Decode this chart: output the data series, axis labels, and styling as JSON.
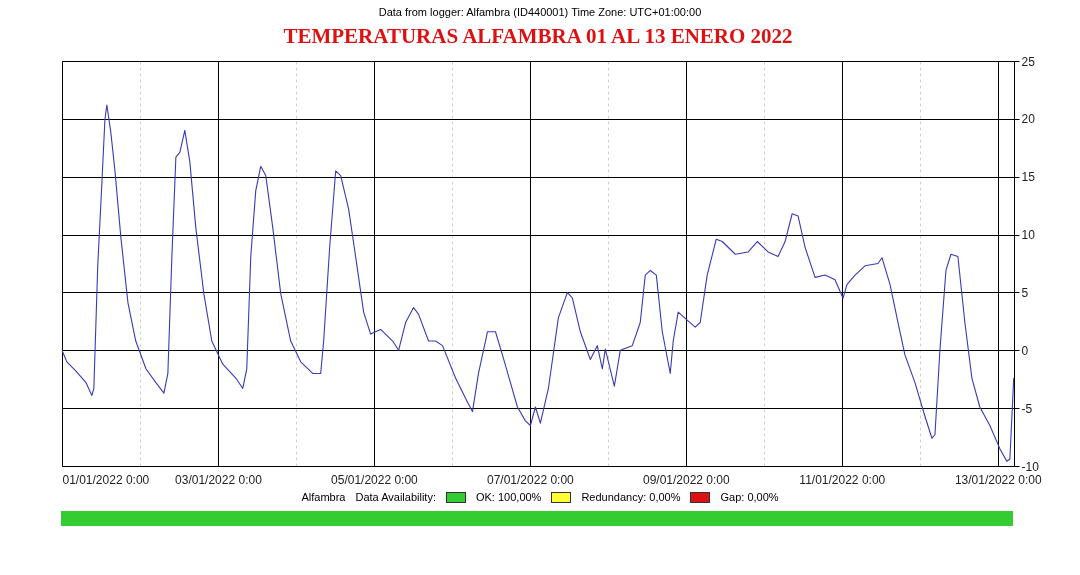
{
  "chart_data": {
    "type": "line",
    "title": "TEMPERATURAS ALFAMBRA 01 AL 13 ENERO 2022",
    "annotations": [
      "Data from logger: Alfambra (ID440001) Time Zone: UTC+01:00:00",
      "Alfambra",
      "Data Availability:",
      "OK: 100,00%",
      "Redundancy: 0,00%",
      "Gap: 0,00%"
    ],
    "xlim": [
      "2022-01-01T00:00",
      "2022-01-13T05:00"
    ],
    "xticks": [
      {
        "value": "2022-01-01T00:00",
        "label": "01/01/2022 0:00"
      },
      {
        "value": "2022-01-02T00:00",
        "label": null
      },
      {
        "value": "2022-01-03T00:00",
        "label": "03/01/2022 0:00"
      },
      {
        "value": "2022-01-04T00:00",
        "label": null
      },
      {
        "value": "2022-01-05T00:00",
        "label": "05/01/2022 0:00"
      },
      {
        "value": "2022-01-06T00:00",
        "label": null
      },
      {
        "value": "2022-01-07T00:00",
        "label": "07/01/2022 0:00"
      },
      {
        "value": "2022-01-08T00:00",
        "label": null
      },
      {
        "value": "2022-01-09T00:00",
        "label": "09/01/2022 0:00"
      },
      {
        "value": "2022-01-10T00:00",
        "label": null
      },
      {
        "value": "2022-01-11T00:00",
        "label": "11/01/2022 0:00"
      },
      {
        "value": "2022-01-12T00:00",
        "label": null
      },
      {
        "value": "2022-01-13T00:00",
        "label": "13/01/2022 0:00"
      }
    ],
    "ylim": [
      -10,
      25
    ],
    "yticks": [
      -10,
      -5,
      0,
      5,
      10,
      15,
      20,
      25
    ],
    "grid": true,
    "marker": "none",
    "line_style": "solid",
    "x": [
      "2022-01-01T00:00",
      "2022-01-01T01:30",
      "2022-01-01T04:18",
      "2022-01-01T07:24",
      "2022-01-01T09:12",
      "2022-01-01T09:48",
      "2022-01-01T11:00",
      "2022-01-01T12:18",
      "2022-01-01T13:12",
      "2022-01-01T13:48",
      "2022-01-01T15:00",
      "2022-01-01T16:18",
      "2022-01-01T18:06",
      "2022-01-01T20:18",
      "2022-01-01T22:42",
      "2022-01-02T01:50",
      "2022-01-02T04:54",
      "2022-01-02T07:22",
      "2022-01-02T08:35",
      "2022-01-02T09:49",
      "2022-01-02T11:03",
      "2022-01-02T12:16",
      "2022-01-02T13:48",
      "2022-01-02T15:20",
      "2022-01-02T17:11",
      "2022-01-02T19:39",
      "2022-01-02T22:06",
      "2022-01-03T01:29",
      "2022-01-03T05:29",
      "2022-01-03T07:38",
      "2022-01-03T08:52",
      "2022-01-03T10:06",
      "2022-01-03T11:38",
      "2022-01-03T13:10",
      "2022-01-03T14:43",
      "2022-01-03T16:52",
      "2022-01-03T19:19",
      "2022-01-03T22:23",
      "2022-01-04T01:28",
      "2022-01-04T05:09",
      "2022-01-04T07:37",
      "2022-01-04T08:32",
      "2022-01-04T10:23",
      "2022-01-04T12:14",
      "2022-01-04T13:46",
      "2022-01-04T16:13",
      "2022-01-04T18:22",
      "2022-01-04T20:50",
      "2022-01-04T22:59",
      "2022-01-05T02:04",
      "2022-01-05T05:46",
      "2022-01-05T07:36",
      "2022-01-05T09:45",
      "2022-01-05T12:12",
      "2022-01-05T13:45",
      "2022-01-05T16:49",
      "2022-01-05T18:58",
      "2022-01-05T21:07",
      "2022-01-06T01:07",
      "2022-01-06T04:48",
      "2022-01-06T06:20",
      "2022-01-06T08:11",
      "2022-01-06T10:57",
      "2022-01-06T13:25",
      "2022-01-06T15:33",
      "2022-01-06T18:01",
      "2022-01-06T20:10",
      "2022-01-06T22:38",
      "2022-01-07T00:10",
      "2022-01-07T01:42",
      "2022-01-07T03:14",
      "2022-01-07T05:42",
      "2022-01-07T08:46",
      "2022-01-07T11:33",
      "2022-01-07T13:05",
      "2022-01-07T15:32",
      "2022-01-07T18:36",
      "2022-01-07T20:45",
      "2022-01-07T22:18",
      "2022-01-07T23:13",
      "2022-01-08T02:00",
      "2022-01-08T03:50",
      "2022-01-08T07:31",
      "2022-01-08T09:58",
      "2022-01-08T11:31",
      "2022-01-08T13:04",
      "2022-01-08T14:55",
      "2022-01-08T16:45",
      "2022-01-08T19:12",
      "2022-01-08T20:07",
      "2022-01-08T21:39",
      "2022-01-09T00:25",
      "2022-01-09T02:53",
      "2022-01-09T04:25",
      "2022-01-09T06:34",
      "2022-01-09T09:22",
      "2022-01-09T11:13",
      "2022-01-09T15:13",
      "2022-01-09T19:12",
      "2022-01-09T22:00",
      "2022-01-10T01:19",
      "2022-01-10T04:23",
      "2022-01-10T06:33",
      "2022-01-10T08:43",
      "2022-01-10T10:33",
      "2022-01-10T12:42",
      "2022-01-10T15:46",
      "2022-01-10T18:51",
      "2022-01-10T21:55",
      "2022-01-11T00:23",
      "2022-01-11T01:37",
      "2022-01-11T04:05",
      "2022-01-11T07:09",
      "2022-01-11T11:08",
      "2022-01-11T12:22",
      "2022-01-11T14:50",
      "2022-01-11T17:18",
      "2022-01-11T19:26",
      "2022-01-11T22:31",
      "2022-01-12T01:35",
      "2022-01-12T03:44",
      "2022-01-12T04:40",
      "2022-01-12T06:12",
      "2022-01-12T08:03",
      "2022-01-12T09:36",
      "2022-01-12T11:44",
      "2022-01-12T13:53",
      "2022-01-12T16:02",
      "2022-01-12T18:29",
      "2022-01-12T21:34",
      "2022-01-13T00:38",
      "2022-01-13T02:49",
      "2022-01-13T03:44",
      "2022-01-13T04:55"
    ],
    "series": [
      {
        "color": "#3a3ab4",
        "values": [
          0,
          -1.0,
          -1.8,
          -2.8,
          -3.9,
          -3.3,
          7.3,
          14.6,
          19.9,
          21.2,
          18.9,
          15.5,
          9.8,
          4.1,
          0.8,
          -1.6,
          -2.8,
          -3.7,
          -2.0,
          8.1,
          16.7,
          17.1,
          19.0,
          16.3,
          10.6,
          4.9,
          0.8,
          -1.2,
          -2.4,
          -3.3,
          -1.6,
          8.1,
          13.8,
          15.9,
          15.1,
          10.6,
          4.9,
          0.8,
          -1.0,
          -2.0,
          -2.0,
          0.8,
          8.9,
          15.5,
          15.1,
          12.2,
          8.1,
          3.3,
          1.4,
          1.8,
          0.8,
          0,
          2.4,
          3.7,
          3.1,
          0.8,
          0.8,
          0.4,
          -2.4,
          -4.5,
          -5.3,
          -2.0,
          1.6,
          1.6,
          -0.4,
          -2.8,
          -4.9,
          -6.1,
          -6.5,
          -4.9,
          -6.3,
          -3.3,
          2.8,
          5.0,
          4.5,
          1.6,
          -0.8,
          0.4,
          -1.6,
          0.1,
          -3.1,
          0,
          0.4,
          2.4,
          6.5,
          6.9,
          6.5,
          1.6,
          -2.0,
          0.8,
          3.3,
          2.6,
          2.0,
          2.4,
          6.5,
          9.6,
          9.4,
          8.3,
          8.5,
          9.4,
          8.5,
          8.1,
          9.4,
          11.8,
          11.6,
          8.9,
          6.3,
          6.5,
          6.1,
          4.5,
          5.7,
          6.5,
          7.3,
          7.5,
          8.0,
          5.7,
          2.4,
          -0.4,
          -2.8,
          -5.7,
          -7.6,
          -7.3,
          0,
          6.9,
          8.3,
          8.1,
          2.4,
          -2.4,
          -4.9,
          -6.5,
          -8.5,
          -9.6,
          -9.4,
          -2.4
        ]
      }
    ]
  }
}
